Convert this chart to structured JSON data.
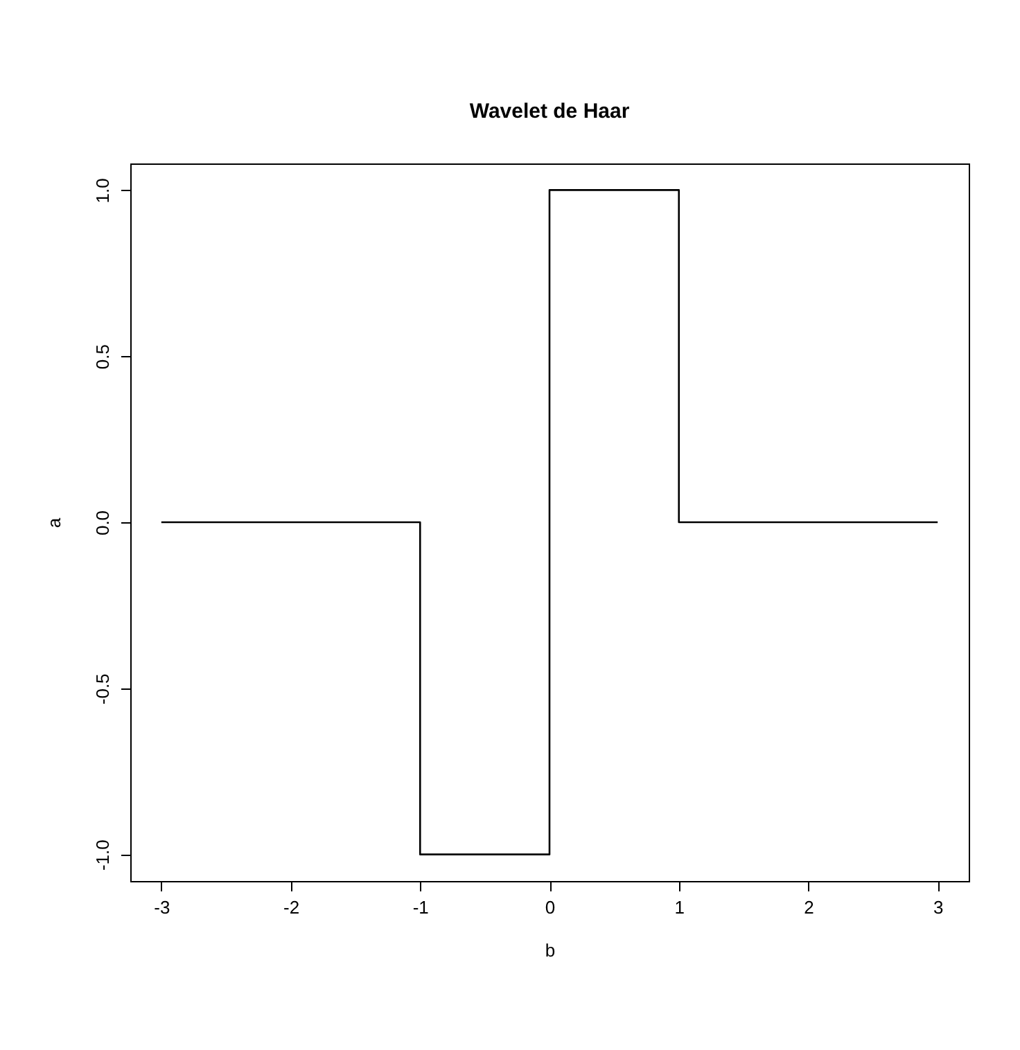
{
  "chart_data": {
    "type": "line",
    "title": "Wavelet de Haar",
    "xlabel": "b",
    "ylabel": "a",
    "x": [
      -3,
      -1,
      -1,
      0,
      0,
      1,
      1,
      3
    ],
    "series": [
      {
        "color": "#000000",
        "values": [
          0,
          0,
          -1,
          -1,
          1,
          1,
          0,
          0
        ]
      }
    ],
    "xlim": [
      -3.24,
      3.24
    ],
    "xticks": [
      -3,
      -2,
      -1,
      0,
      1,
      2,
      3
    ],
    "ylim": [
      -1.08,
      1.08
    ],
    "yticks": [
      {
        "value": -1,
        "label": "-1.0"
      },
      {
        "value": -0.5,
        "label": "-0.5"
      },
      {
        "value": 0,
        "label": "0.0"
      },
      {
        "value": 0.5,
        "label": "0.5"
      },
      {
        "value": 1,
        "label": "1.0"
      }
    ],
    "grid": false,
    "marker": "none",
    "line_style": "solid"
  }
}
